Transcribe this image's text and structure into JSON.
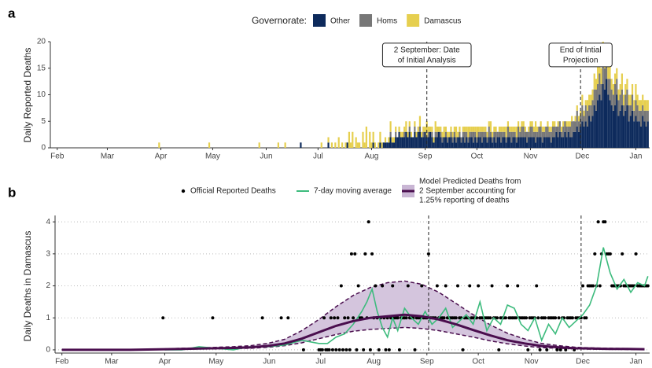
{
  "chart_data": [
    {
      "type": "bar",
      "panel": "a",
      "ylabel": "Daily Reported Deaths",
      "legend_title": "Governorate:",
      "stacked": true,
      "grid": false,
      "xlim": [
        -4,
        343
      ],
      "ylim": [
        0,
        20
      ],
      "yticks": [
        0,
        5,
        10,
        15,
        20
      ],
      "xticks": [
        {
          "value": 0,
          "label": "Feb"
        },
        {
          "value": 29,
          "label": "Mar"
        },
        {
          "value": 60,
          "label": "Apr"
        },
        {
          "value": 90,
          "label": "May"
        },
        {
          "value": 121,
          "label": "Jun"
        },
        {
          "value": 151,
          "label": "Jul"
        },
        {
          "value": 182,
          "label": "Aug"
        },
        {
          "value": 213,
          "label": "Sep"
        },
        {
          "value": 243,
          "label": "Oct"
        },
        {
          "value": 274,
          "label": "Nov"
        },
        {
          "value": 304,
          "label": "Dec"
        },
        {
          "value": 335,
          "label": "Jan"
        }
      ],
      "annotations": [
        {
          "x": 214,
          "y": 17.5,
          "lines": [
            "2 September: Date",
            "of Initial Analysis"
          ]
        },
        {
          "x": 303,
          "y": 17.5,
          "lines": [
            "End of Intial",
            "Projection"
          ]
        }
      ],
      "x": [
        59,
        88,
        117,
        128,
        132,
        141,
        150,
        151,
        152,
        153,
        154,
        155,
        156,
        157,
        158,
        159,
        160,
        161,
        162,
        163,
        164,
        165,
        166,
        167,
        168,
        169,
        170,
        171,
        172,
        173,
        174,
        175,
        176,
        177,
        178,
        179,
        180,
        181,
        182,
        183,
        184,
        185,
        186,
        187,
        188,
        189,
        190,
        191,
        192,
        193,
        194,
        195,
        196,
        197,
        198,
        199,
        200,
        201,
        202,
        203,
        204,
        205,
        206,
        207,
        208,
        209,
        210,
        211,
        212,
        213,
        214,
        215,
        216,
        217,
        218,
        219,
        220,
        221,
        222,
        223,
        224,
        225,
        226,
        227,
        228,
        229,
        230,
        231,
        232,
        233,
        234,
        235,
        236,
        237,
        238,
        239,
        240,
        241,
        242,
        243,
        244,
        245,
        246,
        247,
        248,
        249,
        250,
        251,
        252,
        253,
        254,
        255,
        256,
        257,
        258,
        259,
        260,
        261,
        262,
        263,
        264,
        265,
        266,
        267,
        268,
        269,
        270,
        271,
        272,
        273,
        274,
        275,
        276,
        277,
        278,
        279,
        280,
        281,
        282,
        283,
        284,
        285,
        286,
        287,
        288,
        289,
        290,
        291,
        292,
        293,
        294,
        295,
        296,
        297,
        298,
        299,
        300,
        301,
        302,
        303,
        304,
        305,
        306,
        307,
        308,
        309,
        310,
        311,
        312,
        313,
        314,
        315,
        316,
        317,
        318,
        319,
        320,
        321,
        322,
        323,
        324,
        325,
        326,
        327,
        328,
        329,
        330,
        331,
        332,
        333,
        334,
        335,
        336,
        337,
        338,
        339,
        340,
        341,
        342
      ],
      "series": [
        {
          "name": "Other",
          "color": "#0d2a5c",
          "values": [
            0,
            0,
            0,
            0,
            0,
            1,
            0,
            0,
            0,
            0,
            0,
            0,
            0,
            1,
            0,
            0,
            0,
            0,
            0,
            0,
            0,
            0,
            0,
            0,
            1,
            0,
            0,
            0,
            0,
            0,
            0,
            0,
            0,
            0,
            0,
            0,
            0,
            0,
            0,
            1,
            0,
            0,
            0,
            1,
            0,
            1,
            1,
            1,
            1,
            2,
            1,
            1,
            2,
            2,
            3,
            2,
            2,
            2,
            3,
            2,
            3,
            2,
            2,
            3,
            2,
            3,
            3,
            2,
            2,
            3,
            2,
            2,
            3,
            2,
            1,
            2,
            2,
            3,
            2,
            1,
            2,
            2,
            1,
            2,
            2,
            1,
            2,
            1,
            2,
            2,
            1,
            2,
            1,
            2,
            1,
            2,
            2,
            1,
            2,
            1,
            2,
            2,
            1,
            2,
            2,
            1,
            2,
            2,
            1,
            2,
            1,
            2,
            2,
            1,
            2,
            2,
            1,
            2,
            2,
            1,
            2,
            2,
            1,
            2,
            2,
            2,
            2,
            2,
            1,
            2,
            2,
            2,
            2,
            1,
            2,
            2,
            2,
            1,
            2,
            2,
            2,
            2,
            1,
            2,
            2,
            3,
            2,
            3,
            2,
            2,
            3,
            2,
            3,
            2,
            2,
            3,
            3,
            4,
            3,
            4,
            5,
            4,
            5,
            4,
            6,
            5,
            6,
            8,
            7,
            9,
            10,
            9,
            12,
            11,
            13,
            10,
            9,
            8,
            7,
            8,
            10,
            6,
            7,
            8,
            6,
            7,
            8,
            5,
            6,
            7,
            5,
            6,
            5,
            5,
            4,
            6,
            5,
            4,
            5
          ]
        },
        {
          "name": "Homs",
          "color": "#777777",
          "values": [
            0,
            0,
            0,
            0,
            0,
            0,
            0,
            0,
            0,
            0,
            0,
            0,
            0,
            0,
            0,
            0,
            0,
            0,
            0,
            0,
            0,
            0,
            0,
            0,
            0,
            0,
            0,
            0,
            0,
            0,
            0,
            0,
            0,
            0,
            0,
            0,
            0,
            0,
            0,
            0,
            0,
            0,
            0,
            0,
            0,
            0,
            0,
            0,
            0,
            1,
            0,
            0,
            1,
            0,
            0,
            0,
            0,
            1,
            0,
            0,
            1,
            0,
            0,
            1,
            0,
            0,
            1,
            0,
            1,
            0,
            0,
            1,
            0,
            1,
            0,
            1,
            1,
            0,
            1,
            1,
            0,
            1,
            1,
            0,
            1,
            1,
            1,
            1,
            0,
            1,
            1,
            1,
            2,
            1,
            1,
            1,
            1,
            2,
            1,
            1,
            1,
            1,
            2,
            1,
            1,
            1,
            2,
            1,
            1,
            1,
            2,
            1,
            1,
            2,
            1,
            1,
            1,
            2,
            1,
            2,
            1,
            1,
            1,
            2,
            1,
            2,
            2,
            1,
            2,
            1,
            2,
            2,
            1,
            2,
            1,
            2,
            2,
            2,
            1,
            2,
            2,
            1,
            2,
            2,
            2,
            1,
            2,
            2,
            1,
            2,
            2,
            2,
            1,
            2,
            3,
            2,
            2,
            3,
            2,
            2,
            3,
            2,
            3,
            3,
            2,
            3,
            3,
            3,
            4,
            3,
            4,
            3,
            4,
            4,
            3,
            3,
            4,
            3,
            3,
            4,
            3,
            3,
            3,
            3,
            2,
            3,
            3,
            3,
            2,
            3,
            2,
            3,
            3,
            2,
            3,
            2,
            2,
            3,
            2
          ]
        },
        {
          "name": "Damascus",
          "color": "#e6cf4f",
          "values": [
            1,
            1,
            1,
            1,
            1,
            0,
            0,
            0,
            0,
            1,
            0,
            0,
            0,
            1,
            0,
            1,
            0,
            1,
            0,
            2,
            0,
            1,
            0,
            1,
            0,
            3,
            1,
            3,
            0,
            2,
            1,
            1,
            0,
            3,
            1,
            4,
            0,
            3,
            1,
            2,
            1,
            0,
            1,
            2,
            1,
            0,
            1,
            0,
            1,
            2,
            1,
            1,
            1,
            0,
            1,
            1,
            1,
            1,
            2,
            1,
            1,
            1,
            0,
            1,
            1,
            1,
            2,
            1,
            1,
            1,
            3,
            1,
            1,
            1,
            1,
            2,
            1,
            1,
            1,
            1,
            2,
            1,
            1,
            1,
            1,
            1,
            1,
            2,
            1,
            1,
            0,
            1,
            1,
            1,
            2,
            1,
            1,
            1,
            1,
            2,
            1,
            1,
            1,
            1,
            1,
            1,
            1,
            2,
            1,
            1,
            1,
            0,
            1,
            1,
            1,
            1,
            2,
            1,
            1,
            1,
            1,
            1,
            2,
            1,
            1,
            1,
            1,
            1,
            0,
            1,
            1,
            1,
            1,
            2,
            1,
            0,
            1,
            1,
            1,
            0,
            1,
            1,
            1,
            1,
            1,
            0,
            1,
            0,
            1,
            1,
            0,
            1,
            1,
            1,
            1,
            0,
            1,
            1,
            1,
            1,
            2,
            1,
            1,
            2,
            2,
            2,
            2,
            3,
            2,
            4,
            2,
            3,
            4,
            4,
            3,
            3,
            3,
            2,
            2,
            2,
            2,
            2,
            2,
            3,
            2,
            2,
            2,
            2,
            2,
            2,
            2,
            3,
            2,
            2,
            2,
            2,
            2,
            2,
            2
          ]
        }
      ]
    },
    {
      "type": "line",
      "panel": "b",
      "ylabel": "Daily Deaths in Damascus",
      "grid": true,
      "xlim": [
        -4,
        343
      ],
      "ylim": [
        -0.1,
        4.2
      ],
      "yticks": [
        0,
        1,
        2,
        3,
        4
      ],
      "xticks": [
        {
          "value": 0,
          "label": "Feb"
        },
        {
          "value": 29,
          "label": "Mar"
        },
        {
          "value": 60,
          "label": "Apr"
        },
        {
          "value": 90,
          "label": "May"
        },
        {
          "value": 121,
          "label": "Jun"
        },
        {
          "value": 151,
          "label": "Jul"
        },
        {
          "value": 182,
          "label": "Aug"
        },
        {
          "value": 213,
          "label": "Sep"
        },
        {
          "value": 243,
          "label": "Oct"
        },
        {
          "value": 274,
          "label": "Nov"
        },
        {
          "value": 304,
          "label": "Dec"
        },
        {
          "value": 335,
          "label": "Jan"
        }
      ],
      "vlines": [
        214,
        303
      ],
      "points": {
        "name": "Official Reported Deaths",
        "color": "#000000"
      },
      "moving_average": {
        "name": "7-day moving average",
        "color": "#3dbb7d",
        "x": [
          60,
          70,
          80,
          90,
          100,
          110,
          120,
          130,
          140,
          150,
          155,
          160,
          165,
          170,
          175,
          178,
          181,
          184,
          187,
          190,
          193,
          196,
          200,
          204,
          208,
          212,
          216,
          220,
          224,
          228,
          232,
          236,
          240,
          244,
          248,
          252,
          256,
          260,
          264,
          268,
          272,
          276,
          280,
          284,
          288,
          292,
          296,
          300,
          304,
          308,
          312,
          316,
          318,
          320,
          324,
          328,
          332,
          336,
          340,
          342
        ],
        "values": [
          0,
          0,
          0.1,
          0.05,
          0,
          0.1,
          0.1,
          0.15,
          0.3,
          0.2,
          0.2,
          0.4,
          0.5,
          0.8,
          1.2,
          1.5,
          1.9,
          1.2,
          0.7,
          0.4,
          1.0,
          0.6,
          1.3,
          1.0,
          0.8,
          1.2,
          0.8,
          1.0,
          1.3,
          0.7,
          0.9,
          1.1,
          0.8,
          1.5,
          0.6,
          1.0,
          0.8,
          1.4,
          1.3,
          0.8,
          0.6,
          1.0,
          0.3,
          0.8,
          0.5,
          1.0,
          0.7,
          0.9,
          1.1,
          1.4,
          2.0,
          3.2,
          2.8,
          2.4,
          1.9,
          2.2,
          1.8,
          2.1,
          2.0,
          2.3
        ]
      },
      "model": {
        "name": [
          "Model Predicted Deaths from",
          "2 September accounting for",
          "1.25% reporting of deaths"
        ],
        "color": "#4a0e4e",
        "band_color": "#c9b6d4",
        "x": [
          0,
          10,
          20,
          30,
          40,
          50,
          60,
          70,
          80,
          90,
          100,
          110,
          120,
          130,
          140,
          150,
          160,
          170,
          180,
          190,
          200,
          210,
          220,
          230,
          240,
          250,
          260,
          270,
          280,
          290,
          300,
          310,
          320,
          330,
          340
        ],
        "values": [
          0,
          0,
          0,
          0,
          0,
          0.01,
          0.02,
          0.03,
          0.04,
          0.05,
          0.06,
          0.08,
          0.12,
          0.2,
          0.35,
          0.55,
          0.75,
          0.9,
          1.0,
          1.05,
          1.1,
          1.05,
          0.95,
          0.8,
          0.62,
          0.45,
          0.3,
          0.2,
          0.12,
          0.08,
          0.05,
          0.04,
          0.03,
          0.03,
          0.02
        ],
        "lower": [
          0,
          0,
          0,
          0,
          0,
          0.01,
          0.01,
          0.02,
          0.03,
          0.03,
          0.04,
          0.05,
          0.08,
          0.13,
          0.22,
          0.35,
          0.48,
          0.58,
          0.64,
          0.67,
          0.7,
          0.67,
          0.6,
          0.5,
          0.4,
          0.28,
          0.19,
          0.12,
          0.07,
          0.05,
          0.03,
          0.02,
          0.02,
          0.01,
          0.01
        ],
        "upper": [
          0,
          0,
          0,
          0,
          0,
          0.02,
          0.03,
          0.05,
          0.06,
          0.08,
          0.1,
          0.13,
          0.2,
          0.33,
          0.6,
          0.95,
          1.35,
          1.7,
          1.95,
          2.1,
          2.15,
          2.05,
          1.8,
          1.45,
          1.1,
          0.78,
          0.52,
          0.34,
          0.2,
          0.13,
          0.08,
          0.06,
          0.05,
          0.04,
          0.03
        ]
      }
    }
  ]
}
